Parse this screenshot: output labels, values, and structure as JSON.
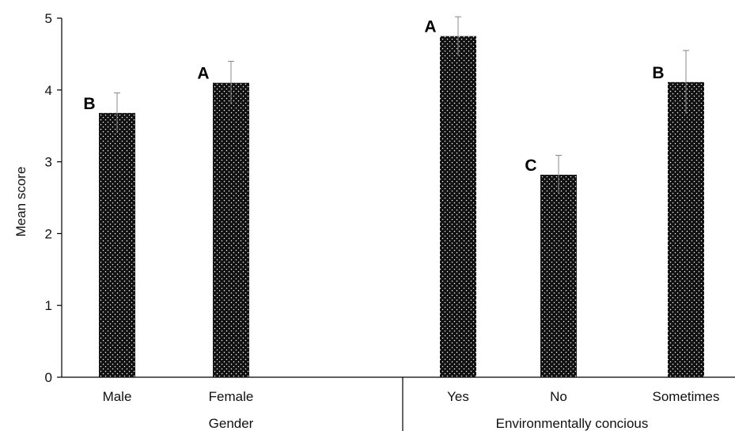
{
  "chart_data": {
    "type": "bar",
    "ylabel": "Mean  score",
    "ylim": [
      0,
      5
    ],
    "yticks": [
      0,
      1,
      2,
      3,
      4,
      5
    ],
    "groups": [
      {
        "label": "Gender",
        "categories": [
          "Male",
          "Female"
        ],
        "values": [
          3.68,
          4.1
        ],
        "errors": [
          0.28,
          0.3
        ],
        "significance": [
          "B",
          "A"
        ]
      },
      {
        "label": "Environmentally concious",
        "categories": [
          "Yes",
          "No",
          "Sometimes"
        ],
        "values": [
          4.75,
          2.82,
          4.11
        ],
        "errors": [
          0.27,
          0.27,
          0.44
        ],
        "significance": [
          "A",
          "C",
          "B"
        ]
      }
    ],
    "grid": false,
    "bar_color": "#111111",
    "bar_pattern": "white dots"
  }
}
